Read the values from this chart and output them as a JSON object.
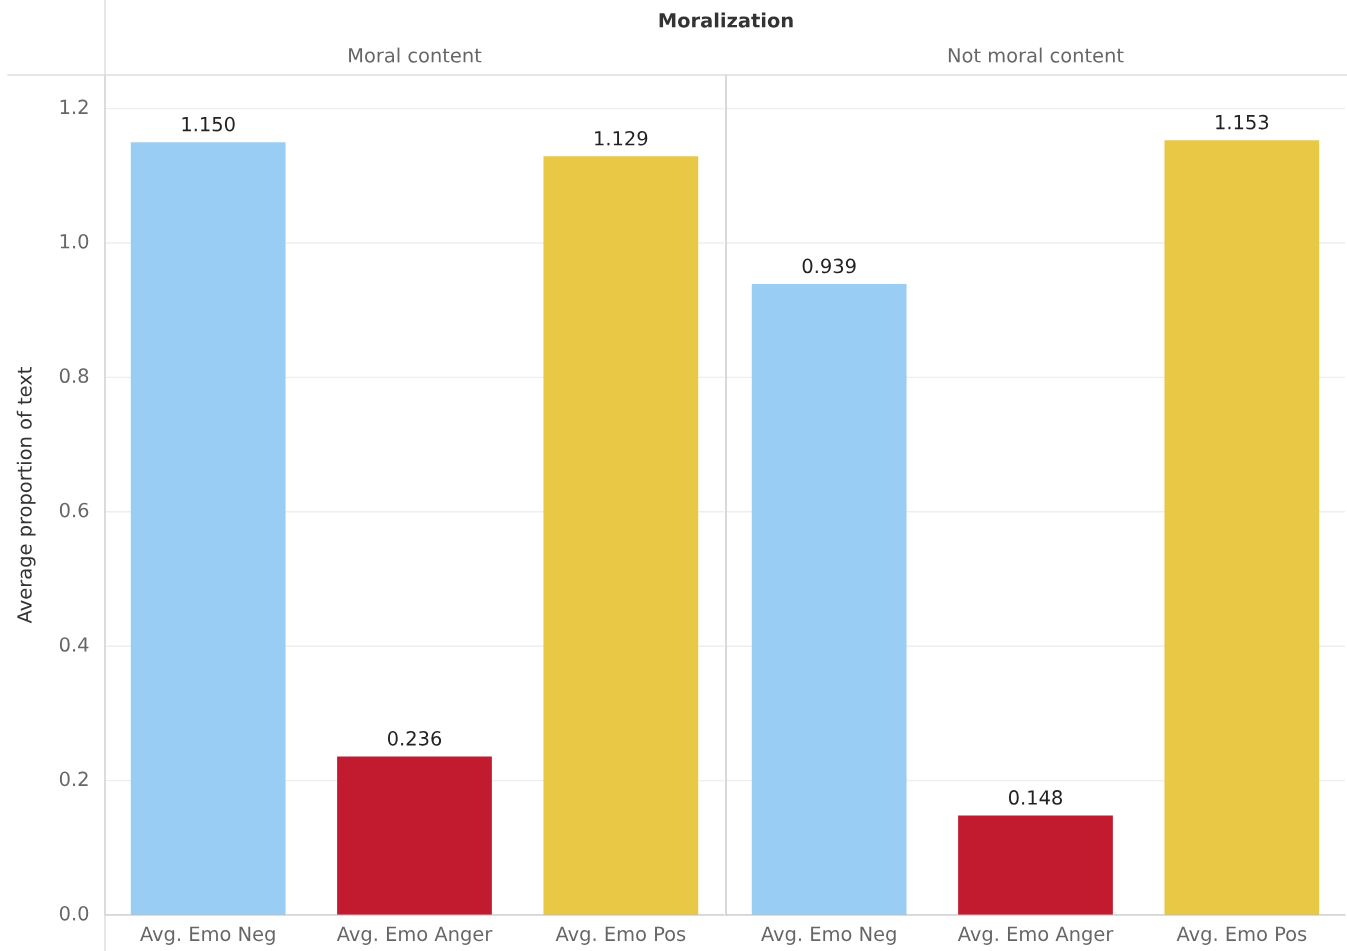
{
  "chart_data": [
    {
      "type": "bar",
      "title": "Moralization",
      "subtitle": "Moral content",
      "ylabel": "Average proportion of text",
      "categories": [
        "Avg. Emo Neg",
        "Avg. Emo Anger",
        "Avg. Emo Pos"
      ],
      "values": [
        1.15,
        0.236,
        1.129
      ],
      "colors": [
        "#99cdf4",
        "#c21b2f",
        "#e9c846"
      ],
      "value_labels": [
        "1.150",
        "0.236",
        "1.129"
      ],
      "ylim": [
        0,
        1.25
      ],
      "yticks": [
        {
          "value": 0,
          "label": "0.0"
        },
        0.2,
        0.4,
        0.6,
        0.8,
        {
          "value": 1,
          "label": "1.0"
        },
        1.2
      ],
      "grid": "y"
    },
    {
      "type": "bar",
      "subtitle": "Not moral content",
      "categories": [
        "Avg. Emo Neg",
        "Avg. Emo Anger",
        "Avg. Emo Pos"
      ],
      "values": [
        0.939,
        0.148,
        1.153
      ],
      "colors": [
        "#99cdf4",
        "#c21b2f",
        "#e9c846"
      ],
      "value_labels": [
        "0.939",
        "0.148",
        "1.153"
      ],
      "ylim": [
        0,
        1.25
      ],
      "yticks": [
        0.0,
        0.2,
        0.4,
        0.6,
        0.8,
        1.0,
        1.2
      ],
      "grid": "y",
      "tick_labels": "x"
    }
  ]
}
